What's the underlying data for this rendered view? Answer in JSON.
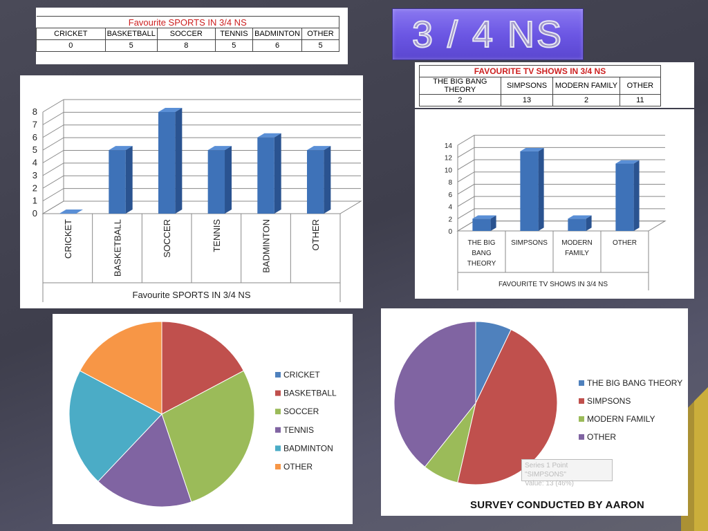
{
  "slide_title": "3 / 4 NS",
  "footer": "SURVEY CONDUCTED BY AARON",
  "sports_table": {
    "title": "Favourite SPORTS IN 3/4 NS",
    "headers": [
      "CRICKET",
      "BASKETBALL",
      "SOCCER",
      "TENNIS",
      "BADMINTON",
      "OTHER"
    ],
    "values": [
      "0",
      "5",
      "8",
      "5",
      "6",
      "5"
    ]
  },
  "tv_table": {
    "title": "FAVOURITE TV SHOWS IN 3/4 NS",
    "headers": [
      "THE BIG BANG THEORY",
      "SIMPSONS",
      "MODERN FAMILY",
      "OTHER"
    ],
    "values": [
      "2",
      "13",
      "2",
      "11"
    ]
  },
  "tooltip": {
    "line1": "Series 1 Point \"SIMPSONS\"",
    "line2": "Value: 13 (46%)"
  },
  "colors": {
    "bar": "#3e72b8",
    "pie": [
      "#4f81bd",
      "#c0504d",
      "#9bbb59",
      "#8064a2",
      "#4bacc6",
      "#f79646"
    ]
  },
  "chart_data": [
    {
      "type": "bar",
      "title": "Favourite SPORTS IN 3/4 NS",
      "xlabel": "Favourite SPORTS IN 3/4 NS",
      "categories": [
        "CRICKET",
        "BASKETBALL",
        "SOCCER",
        "TENNIS",
        "BADMINTON",
        "OTHER"
      ],
      "values": [
        0,
        5,
        8,
        5,
        6,
        5
      ],
      "ylim": [
        0,
        8
      ],
      "yticks": [
        "0",
        "1",
        "2",
        "3",
        "4",
        "5",
        "6",
        "7",
        "8"
      ],
      "grid": true
    },
    {
      "type": "bar",
      "title": "FAVOURITE TV SHOWS IN 3/4 NS",
      "xlabel": "FAVOURITE TV SHOWS IN 3/4 NS",
      "categories": [
        "THE BIG BANG THEORY",
        "SIMPSONS",
        "MODERN FAMILY",
        "OTHER"
      ],
      "values": [
        2,
        13,
        2,
        11
      ],
      "ylim": [
        0,
        14
      ],
      "yticks": [
        "0",
        "2",
        "4",
        "6",
        "8",
        "10",
        "12",
        "14"
      ],
      "grid": true
    },
    {
      "type": "pie",
      "categories": [
        "CRICKET",
        "BASKETBALL",
        "SOCCER",
        "TENNIS",
        "BADMINTON",
        "OTHER"
      ],
      "values": [
        0,
        5,
        8,
        5,
        6,
        5
      ],
      "legend": "right"
    },
    {
      "type": "pie",
      "categories": [
        "THE BIG BANG THEORY",
        "SIMPSONS",
        "MODERN FAMILY",
        "OTHER"
      ],
      "values": [
        2,
        13,
        2,
        11
      ],
      "legend": "right"
    }
  ]
}
